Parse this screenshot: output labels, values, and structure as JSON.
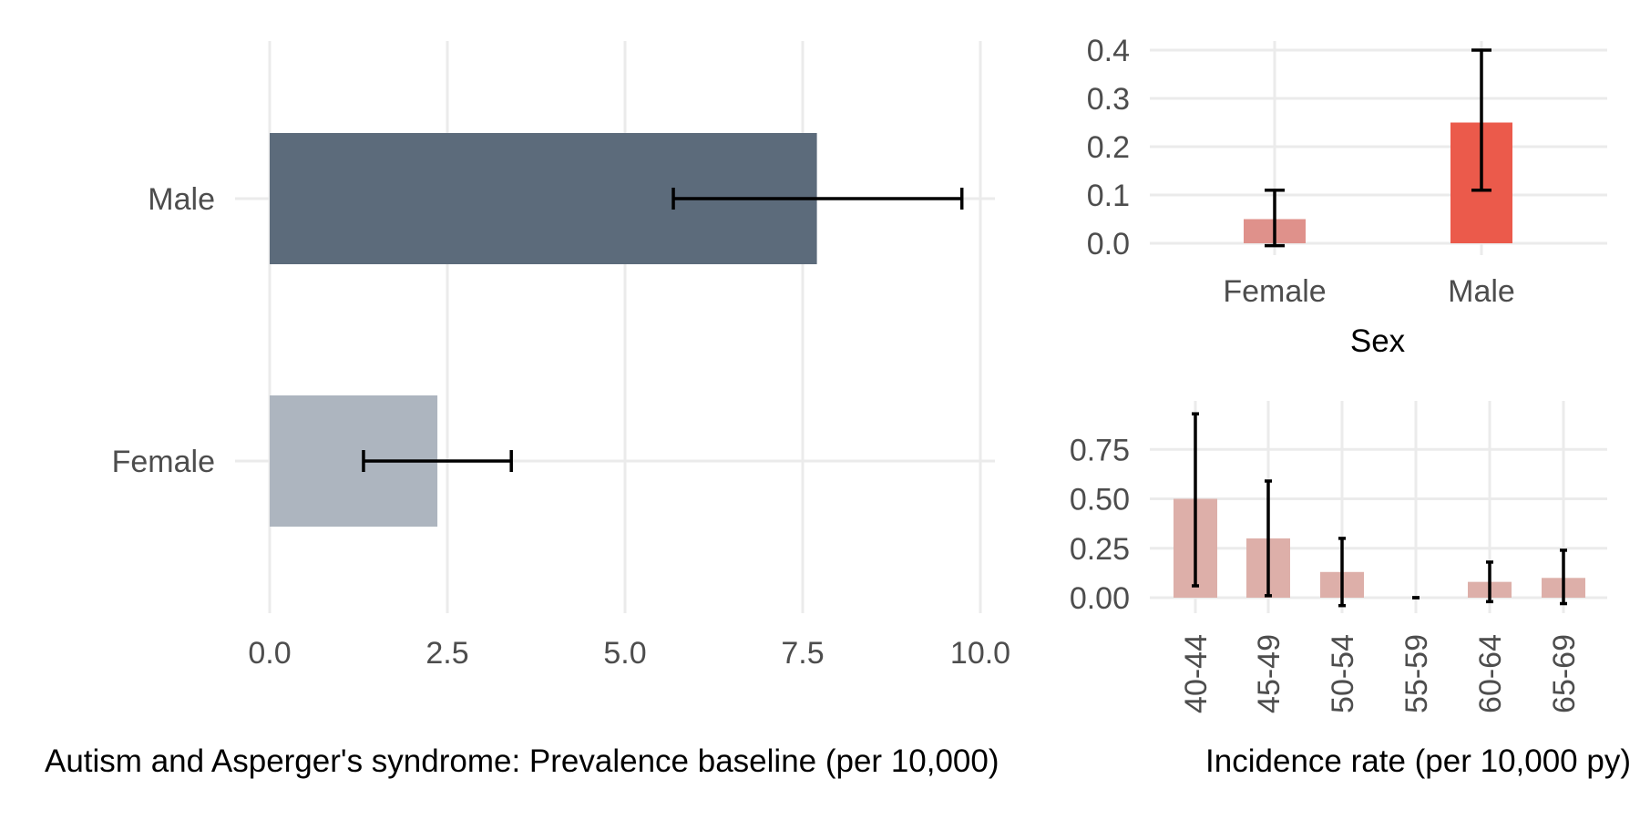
{
  "chart_data": [
    {
      "id": "prevalence",
      "type": "bar",
      "orientation": "horizontal",
      "categories": [
        "Female",
        "Male"
      ],
      "values": [
        2.36,
        7.7
      ],
      "error_low": [
        1.32,
        5.68
      ],
      "error_high": [
        3.4,
        9.74
      ],
      "bar_colors": [
        "#adb5bf",
        "#5c6b7b"
      ],
      "xlim": [
        0,
        10
      ],
      "xticks": [
        "0.0",
        "2.5",
        "5.0",
        "7.5",
        "10.0"
      ],
      "xlabel": "Autism and Asperger's syndrome: Prevalence baseline (per 10,000)",
      "ylabel": ""
    },
    {
      "id": "incidence_sex",
      "type": "bar",
      "categories": [
        "Female",
        "Male"
      ],
      "values": [
        0.05,
        0.25
      ],
      "error_low": [
        -0.005,
        0.11
      ],
      "error_high": [
        0.11,
        0.4
      ],
      "bar_colors": [
        "#df918b",
        "#eb5a4b"
      ],
      "ylim": [
        0,
        0.4
      ],
      "yticks": [
        "0.0",
        "0.1",
        "0.2",
        "0.3",
        "0.4"
      ],
      "xlabel": "Sex",
      "ylabel": ""
    },
    {
      "id": "incidence_age",
      "type": "bar",
      "categories": [
        "40-44",
        "45-49",
        "50-54",
        "55-59",
        "60-64",
        "65-69"
      ],
      "values": [
        0.5,
        0.3,
        0.13,
        0.0,
        0.08,
        0.1
      ],
      "error_low": [
        0.06,
        0.01,
        -0.04,
        0.0,
        -0.02,
        -0.03
      ],
      "error_high": [
        0.93,
        0.59,
        0.3,
        0.0,
        0.18,
        0.24
      ],
      "bar_color": "#ddafa9",
      "ylim": [
        0,
        0.93
      ],
      "yticks": [
        "0.00",
        "0.25",
        "0.50",
        "0.75"
      ],
      "xlabel": "Incidence rate (per 10,000 py)",
      "ylabel": ""
    }
  ]
}
